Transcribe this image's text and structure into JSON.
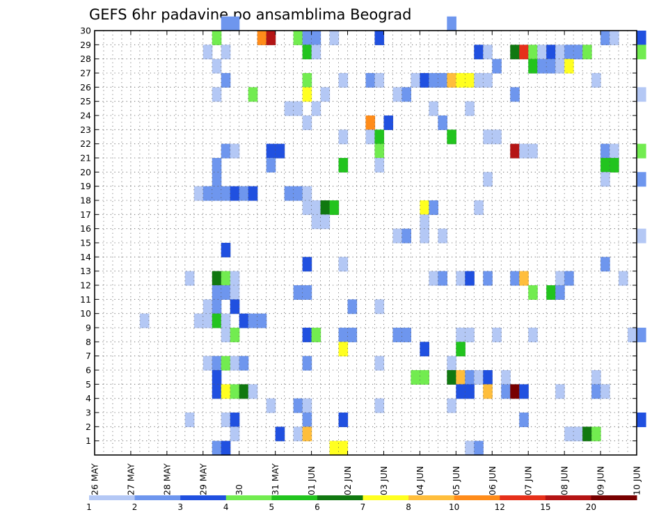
{
  "chart_data": {
    "type": "heatmap",
    "title": "GEFS 6hr padavine po ansamblima Beograd",
    "xlabel": "",
    "ylabel": "",
    "y_ticks": [
      "1",
      "2",
      "3",
      "4",
      "5",
      "6",
      "7",
      "8",
      "9",
      "10",
      "11",
      "12",
      "13",
      "14",
      "15",
      "16",
      "17",
      "18",
      "19",
      "20",
      "21",
      "22",
      "23",
      "24",
      "25",
      "26",
      "27",
      "28",
      "29",
      "30"
    ],
    "x_ticks": [
      "26 MAY",
      "27 MAY",
      "28 MAY",
      "29 MAY",
      "30",
      "31 MAY",
      "01 JUN",
      "02 JUN",
      "03 JUN",
      "04 JUN",
      "05 JUN",
      "06 JUN",
      "07 JUN",
      "08 JUN",
      "09 JUN",
      "10 JUN"
    ],
    "x_range_steps": [
      0,
      60
    ],
    "y_range": [
      0,
      30
    ],
    "grid": true,
    "legend_position": "bottom",
    "colorbar": {
      "labels": [
        "1",
        "2",
        "3",
        "4",
        "5",
        "6",
        "7",
        "8",
        "10",
        "12",
        "15",
        "20"
      ],
      "colors": [
        "#b4c8f5",
        "#6e96ee",
        "#2050e0",
        "#72ec50",
        "#22c41e",
        "#107810",
        "#ffff20",
        "#ffbe3c",
        "#ff8c1a",
        "#e6301a",
        "#b41414",
        "#780000"
      ]
    },
    "cells": [
      [
        14,
        30,
        1
      ],
      [
        15,
        30,
        1
      ],
      [
        39,
        30,
        1
      ],
      [
        13,
        29,
        3
      ],
      [
        18,
        29,
        8
      ],
      [
        19,
        29,
        10
      ],
      [
        22,
        29,
        3
      ],
      [
        23,
        29,
        1
      ],
      [
        24,
        29,
        1
      ],
      [
        26,
        29,
        0
      ],
      [
        31,
        29,
        2
      ],
      [
        56,
        29,
        1
      ],
      [
        57,
        29,
        0
      ],
      [
        60,
        29,
        2
      ],
      [
        12,
        28,
        0
      ],
      [
        14,
        28,
        0
      ],
      [
        23,
        28,
        4
      ],
      [
        24,
        28,
        0
      ],
      [
        42,
        28,
        2
      ],
      [
        43,
        28,
        0
      ],
      [
        46,
        28,
        5
      ],
      [
        47,
        28,
        9
      ],
      [
        48,
        28,
        3
      ],
      [
        49,
        28,
        0
      ],
      [
        50,
        28,
        2
      ],
      [
        51,
        28,
        0
      ],
      [
        52,
        28,
        1
      ],
      [
        53,
        28,
        1
      ],
      [
        54,
        28,
        3
      ],
      [
        60,
        28,
        3
      ],
      [
        13,
        27,
        0
      ],
      [
        44,
        27,
        1
      ],
      [
        48,
        27,
        4
      ],
      [
        49,
        27,
        1
      ],
      [
        50,
        27,
        1
      ],
      [
        51,
        27,
        0
      ],
      [
        52,
        27,
        6
      ],
      [
        14,
        26,
        1
      ],
      [
        23,
        26,
        3
      ],
      [
        27,
        26,
        0
      ],
      [
        30,
        26,
        1
      ],
      [
        31,
        26,
        0
      ],
      [
        35,
        26,
        0
      ],
      [
        36,
        26,
        2
      ],
      [
        37,
        26,
        1
      ],
      [
        38,
        26,
        1
      ],
      [
        39,
        26,
        7
      ],
      [
        40,
        26,
        6
      ],
      [
        41,
        26,
        6
      ],
      [
        42,
        26,
        0
      ],
      [
        43,
        26,
        0
      ],
      [
        55,
        26,
        0
      ],
      [
        13,
        25,
        0
      ],
      [
        17,
        25,
        3
      ],
      [
        23,
        25,
        6
      ],
      [
        25,
        25,
        0
      ],
      [
        33,
        25,
        0
      ],
      [
        34,
        25,
        1
      ],
      [
        46,
        25,
        1
      ],
      [
        60,
        25,
        0
      ],
      [
        21,
        24,
        0
      ],
      [
        22,
        24,
        0
      ],
      [
        24,
        24,
        0
      ],
      [
        37,
        24,
        0
      ],
      [
        41,
        24,
        0
      ],
      [
        23,
        23,
        0
      ],
      [
        30,
        23,
        8
      ],
      [
        32,
        23,
        2
      ],
      [
        38,
        23,
        1
      ],
      [
        27,
        22,
        0
      ],
      [
        30,
        22,
        0
      ],
      [
        31,
        22,
        4
      ],
      [
        39,
        22,
        4
      ],
      [
        43,
        22,
        0
      ],
      [
        44,
        22,
        0
      ],
      [
        14,
        21,
        1
      ],
      [
        15,
        21,
        0
      ],
      [
        19,
        21,
        2
      ],
      [
        20,
        21,
        2
      ],
      [
        31,
        21,
        3
      ],
      [
        46,
        21,
        10
      ],
      [
        47,
        21,
        0
      ],
      [
        48,
        21,
        0
      ],
      [
        56,
        21,
        1
      ],
      [
        57,
        21,
        0
      ],
      [
        60,
        21,
        3
      ],
      [
        13,
        20,
        1
      ],
      [
        19,
        20,
        1
      ],
      [
        27,
        20,
        4
      ],
      [
        31,
        20,
        0
      ],
      [
        56,
        20,
        4
      ],
      [
        57,
        20,
        4
      ],
      [
        13,
        19,
        1
      ],
      [
        43,
        19,
        0
      ],
      [
        56,
        19,
        0
      ],
      [
        60,
        19,
        1
      ],
      [
        11,
        18,
        0
      ],
      [
        12,
        18,
        1
      ],
      [
        13,
        18,
        1
      ],
      [
        14,
        18,
        1
      ],
      [
        15,
        18,
        2
      ],
      [
        16,
        18,
        1
      ],
      [
        17,
        18,
        2
      ],
      [
        21,
        18,
        1
      ],
      [
        22,
        18,
        1
      ],
      [
        23,
        18,
        0
      ],
      [
        23,
        17,
        0
      ],
      [
        24,
        17,
        0
      ],
      [
        25,
        17,
        5
      ],
      [
        26,
        17,
        4
      ],
      [
        36,
        17,
        6
      ],
      [
        37,
        17,
        1
      ],
      [
        42,
        17,
        0
      ],
      [
        24,
        16,
        0
      ],
      [
        25,
        16,
        0
      ],
      [
        36,
        16,
        0
      ],
      [
        33,
        15,
        0
      ],
      [
        34,
        15,
        1
      ],
      [
        36,
        15,
        0
      ],
      [
        38,
        15,
        0
      ],
      [
        60,
        15,
        0
      ],
      [
        14,
        14,
        2
      ],
      [
        23,
        13,
        2
      ],
      [
        27,
        13,
        0
      ],
      [
        56,
        13,
        1
      ],
      [
        10,
        12,
        0
      ],
      [
        13,
        12,
        5
      ],
      [
        14,
        12,
        3
      ],
      [
        15,
        12,
        0
      ],
      [
        37,
        12,
        0
      ],
      [
        38,
        12,
        1
      ],
      [
        40,
        12,
        0
      ],
      [
        41,
        12,
        2
      ],
      [
        43,
        12,
        1
      ],
      [
        46,
        12,
        1
      ],
      [
        47,
        12,
        7
      ],
      [
        51,
        12,
        0
      ],
      [
        52,
        12,
        1
      ],
      [
        58,
        12,
        0
      ],
      [
        13,
        11,
        1
      ],
      [
        14,
        11,
        1
      ],
      [
        15,
        11,
        0
      ],
      [
        22,
        11,
        1
      ],
      [
        23,
        11,
        1
      ],
      [
        48,
        11,
        3
      ],
      [
        50,
        11,
        4
      ],
      [
        51,
        11,
        1
      ],
      [
        12,
        10,
        0
      ],
      [
        13,
        10,
        1
      ],
      [
        15,
        10,
        2
      ],
      [
        28,
        10,
        1
      ],
      [
        31,
        10,
        0
      ],
      [
        5,
        9,
        0
      ],
      [
        11,
        9,
        0
      ],
      [
        12,
        9,
        0
      ],
      [
        13,
        9,
        4
      ],
      [
        14,
        9,
        0
      ],
      [
        16,
        9,
        2
      ],
      [
        17,
        9,
        1
      ],
      [
        18,
        9,
        1
      ],
      [
        14,
        8,
        0
      ],
      [
        15,
        8,
        3
      ],
      [
        23,
        8,
        2
      ],
      [
        24,
        8,
        3
      ],
      [
        27,
        8,
        1
      ],
      [
        28,
        8,
        1
      ],
      [
        33,
        8,
        1
      ],
      [
        34,
        8,
        1
      ],
      [
        40,
        8,
        0
      ],
      [
        41,
        8,
        0
      ],
      [
        44,
        8,
        0
      ],
      [
        48,
        8,
        0
      ],
      [
        59,
        8,
        0
      ],
      [
        60,
        8,
        1
      ],
      [
        27,
        7,
        6
      ],
      [
        36,
        7,
        2
      ],
      [
        40,
        7,
        4
      ],
      [
        12,
        6,
        0
      ],
      [
        13,
        6,
        1
      ],
      [
        14,
        6,
        3
      ],
      [
        15,
        6,
        0
      ],
      [
        16,
        6,
        1
      ],
      [
        23,
        6,
        1
      ],
      [
        31,
        6,
        0
      ],
      [
        39,
        6,
        0
      ],
      [
        13,
        5,
        2
      ],
      [
        35,
        5,
        3
      ],
      [
        36,
        5,
        3
      ],
      [
        39,
        5,
        5
      ],
      [
        40,
        5,
        7
      ],
      [
        41,
        5,
        1
      ],
      [
        42,
        5,
        0
      ],
      [
        43,
        5,
        2
      ],
      [
        45,
        5,
        0
      ],
      [
        55,
        5,
        0
      ],
      [
        13,
        4,
        2
      ],
      [
        14,
        4,
        6
      ],
      [
        15,
        4,
        3
      ],
      [
        16,
        4,
        5
      ],
      [
        17,
        4,
        0
      ],
      [
        40,
        4,
        2
      ],
      [
        41,
        4,
        2
      ],
      [
        43,
        4,
        7
      ],
      [
        45,
        4,
        1
      ],
      [
        46,
        4,
        11
      ],
      [
        47,
        4,
        2
      ],
      [
        51,
        4,
        0
      ],
      [
        55,
        4,
        1
      ],
      [
        56,
        4,
        0
      ],
      [
        19,
        3,
        0
      ],
      [
        22,
        3,
        1
      ],
      [
        23,
        3,
        0
      ],
      [
        31,
        3,
        0
      ],
      [
        39,
        3,
        0
      ],
      [
        10,
        2,
        0
      ],
      [
        14,
        2,
        0
      ],
      [
        15,
        2,
        2
      ],
      [
        23,
        2,
        1
      ],
      [
        27,
        2,
        2
      ],
      [
        47,
        2,
        1
      ],
      [
        60,
        2,
        2
      ],
      [
        15,
        1,
        0
      ],
      [
        20,
        1,
        2
      ],
      [
        22,
        1,
        0
      ],
      [
        23,
        1,
        7
      ],
      [
        52,
        1,
        0
      ],
      [
        53,
        1,
        0
      ],
      [
        54,
        1,
        5
      ],
      [
        55,
        1,
        3
      ],
      [
        13,
        0,
        1
      ],
      [
        14,
        0,
        2
      ],
      [
        26,
        0,
        6
      ],
      [
        27,
        0,
        6
      ],
      [
        41,
        0,
        0
      ],
      [
        42,
        0,
        1
      ]
    ]
  }
}
